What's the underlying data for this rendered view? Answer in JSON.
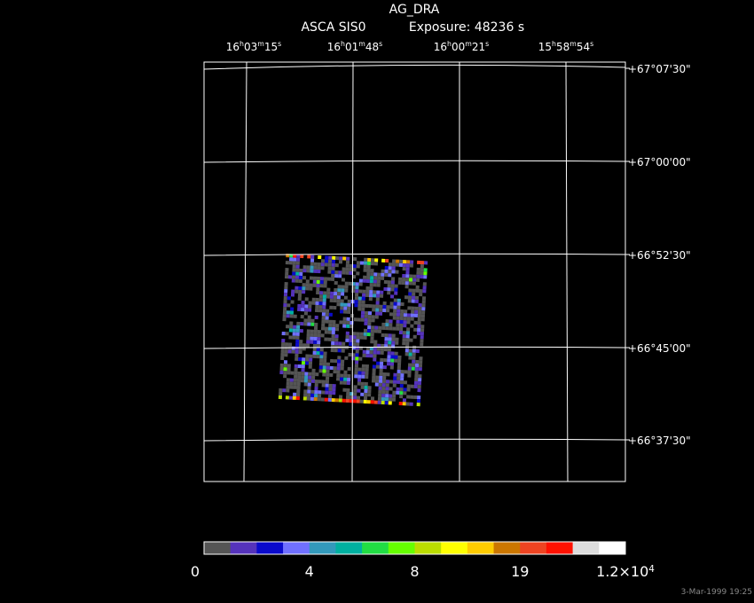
{
  "header": {
    "object": "AG_DRA",
    "instrument": "ASCA SIS0",
    "exposure": "Exposure: 48236 s"
  },
  "ra_labels": [
    [
      "16",
      "h",
      "03",
      "m",
      "15",
      "s"
    ],
    [
      "16",
      "h",
      "01",
      "m",
      "48",
      "s"
    ],
    [
      "16",
      "h",
      "00",
      "m",
      "21",
      "s"
    ],
    [
      "15",
      "h",
      "58",
      "m",
      "54",
      "s"
    ]
  ],
  "dec_labels": [
    "+67°07'30\"",
    "+67°00'00\"",
    "+66°52'30\"",
    "+66°45'00\"",
    "+66°37'30\""
  ],
  "colorbar": {
    "colors": [
      "#555555",
      "#5533bb",
      "#0a0acc",
      "#7070ff",
      "#3399bb",
      "#00b0a0",
      "#22dd44",
      "#66ff00",
      "#bbdd00",
      "#ffff00",
      "#ffcc00",
      "#cc7700",
      "#ee4422",
      "#ff1100",
      "#dddddd",
      "#ffffff"
    ],
    "labels": [
      [
        "0"
      ],
      [
        "4"
      ],
      [
        "8"
      ],
      [
        "19"
      ],
      [
        "1.2×10",
        "4"
      ]
    ]
  },
  "timestamp": "3-Mar-1999 19:25"
}
